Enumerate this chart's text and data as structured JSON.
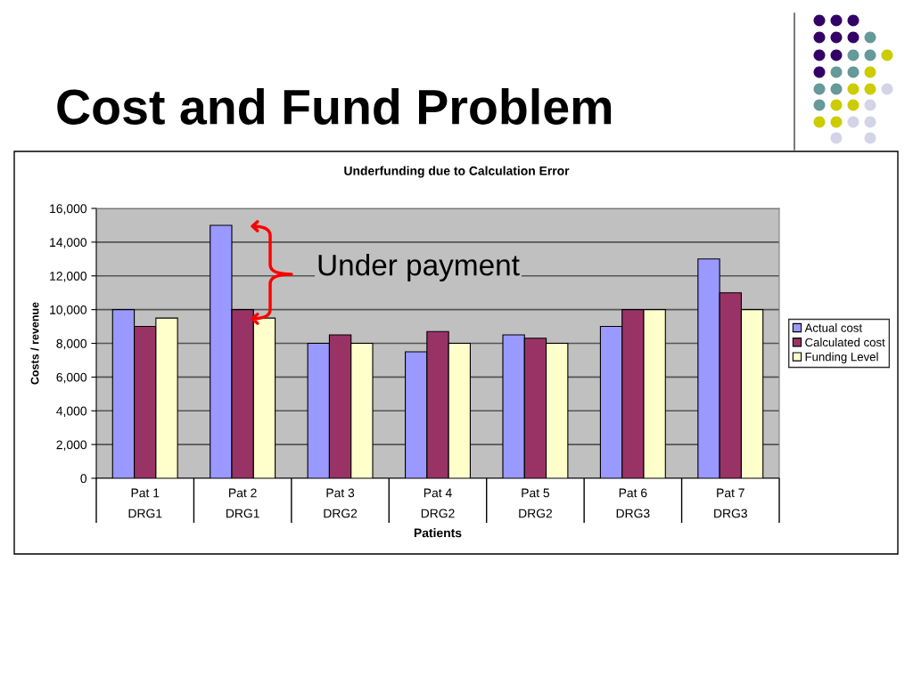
{
  "chart_data": {
    "type": "bar",
    "title": "Cost and Fund Problem",
    "subtitle": "Underfunding due to Calculation Error",
    "xlabel": "Patients",
    "ylabel": "Costs / revenue",
    "categories": [
      "Pat 1\nDRG1",
      "Pat 2\nDRG1",
      "Pat 3\nDRG2",
      "Pat 4\nDRG2",
      "Pat 5\nDRG2",
      "Pat 6\nDRG3",
      "Pat 7\nDRG3"
    ],
    "series": [
      {
        "name": "Actual cost",
        "color": "#9999ff",
        "values": [
          10000,
          15000,
          8000,
          7500,
          8500,
          9000,
          13000
        ]
      },
      {
        "name": "Calculated cost",
        "color": "#993366",
        "values": [
          9000,
          10000,
          8500,
          8700,
          8300,
          10000,
          11000
        ]
      },
      {
        "name": "Funding Level",
        "color": "#ffffcc",
        "values": [
          9500,
          9500,
          8000,
          8000,
          8000,
          10000,
          10000
        ]
      }
    ],
    "ylim": [
      0,
      16000
    ],
    "yticks": [
      0,
      {
        "value": 2000,
        "label": "2,000"
      },
      {
        "value": 4000,
        "label": "4,000"
      },
      {
        "value": 6000,
        "label": "6,000"
      },
      {
        "value": 8000,
        "label": "8,000"
      },
      {
        "value": 10000,
        "label": "10,000"
      },
      {
        "value": 12000,
        "label": "12,000"
      },
      {
        "value": 14000,
        "label": "14,000"
      },
      {
        "value": 16000,
        "label": "16,000"
      }
    ],
    "grid": "y",
    "legend": "right",
    "annotations": [
      "Under payment"
    ]
  }
}
